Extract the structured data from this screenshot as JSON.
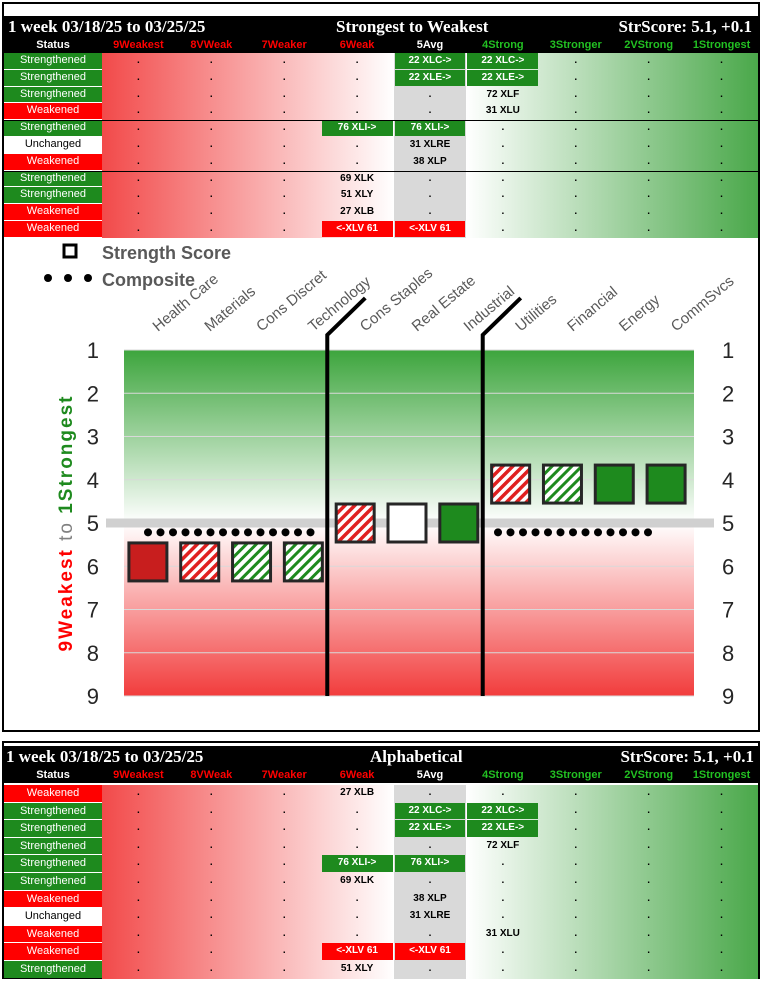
{
  "columns": [
    "Status",
    "9Weakest",
    "8VWeak",
    "7Weaker",
    "6Weak",
    "5Avg",
    "4Strong",
    "3Stronger",
    "2VStrong",
    "1Strongest"
  ],
  "top_table": {
    "period": "1 week 03/18/25 to 03/25/25",
    "title": "Strongest to Weakest",
    "score": "StrScore: 5.1, +0.1",
    "rows": [
      {
        "status": "Strengthened",
        "cells": {
          "5": {
            "text": "22 XLC->",
            "style": "green"
          },
          "6": {
            "text": "22 XLC->",
            "style": "green"
          }
        }
      },
      {
        "status": "Strengthened",
        "cells": {
          "5": {
            "text": "22 XLE->",
            "style": "green"
          },
          "6": {
            "text": "22 XLE->",
            "style": "green"
          }
        }
      },
      {
        "status": "Strengthened",
        "cells": {
          "6": {
            "text": "72 XLF",
            "style": ""
          }
        }
      },
      {
        "status": "Weakened",
        "cells": {
          "6": {
            "text": "31 XLU",
            "style": ""
          }
        }
      },
      {
        "status": "Strengthened",
        "cells": {
          "4": {
            "text": "76 XLI->",
            "style": "green"
          },
          "5": {
            "text": "76 XLI->",
            "style": "green"
          }
        }
      },
      {
        "status": "Unchanged",
        "cells": {
          "5": {
            "text": "31 XLRE",
            "style": ""
          }
        }
      },
      {
        "status": "Weakened",
        "cells": {
          "5": {
            "text": "38 XLP",
            "style": ""
          }
        }
      },
      {
        "status": "Strengthened",
        "cells": {
          "4": {
            "text": "69 XLK",
            "style": ""
          }
        }
      },
      {
        "status": "Strengthened",
        "cells": {
          "4": {
            "text": "51 XLY",
            "style": ""
          }
        }
      },
      {
        "status": "Weakened",
        "cells": {
          "4": {
            "text": "27 XLB",
            "style": ""
          }
        }
      },
      {
        "status": "Weakened",
        "cells": {
          "4": {
            "text": "<-XLV 61",
            "style": "red"
          },
          "5": {
            "text": "<-XLV 61",
            "style": "red"
          }
        }
      }
    ]
  },
  "bottom_table": {
    "period": "1 week 03/18/25 to 03/25/25",
    "title": "Alphabetical",
    "score": "StrScore: 5.1, +0.1",
    "rows": [
      {
        "status": "Weakened",
        "cells": {
          "4": {
            "text": "27 XLB",
            "style": ""
          }
        }
      },
      {
        "status": "Strengthened",
        "cells": {
          "5": {
            "text": "22 XLC->",
            "style": "green"
          },
          "6": {
            "text": "22 XLC->",
            "style": "green"
          }
        }
      },
      {
        "status": "Strengthened",
        "cells": {
          "5": {
            "text": "22 XLE->",
            "style": "green"
          },
          "6": {
            "text": "22 XLE->",
            "style": "green"
          }
        }
      },
      {
        "status": "Strengthened",
        "cells": {
          "6": {
            "text": "72 XLF",
            "style": ""
          }
        }
      },
      {
        "status": "Strengthened",
        "cells": {
          "4": {
            "text": "76 XLI->",
            "style": "green"
          },
          "5": {
            "text": "76 XLI->",
            "style": "green"
          }
        }
      },
      {
        "status": "Strengthened",
        "cells": {
          "4": {
            "text": "69 XLK",
            "style": ""
          }
        }
      },
      {
        "status": "Weakened",
        "cells": {
          "5": {
            "text": "38 XLP",
            "style": ""
          }
        }
      },
      {
        "status": "Unchanged",
        "cells": {
          "5": {
            "text": "31 XLRE",
            "style": ""
          }
        }
      },
      {
        "status": "Weakened",
        "cells": {
          "6": {
            "text": "31 XLU",
            "style": ""
          }
        }
      },
      {
        "status": "Weakened",
        "cells": {
          "4": {
            "text": "<-XLV 61",
            "style": "red"
          },
          "5": {
            "text": "<-XLV 61",
            "style": "red"
          }
        }
      },
      {
        "status": "Strengthened",
        "cells": {
          "4": {
            "text": "51 XLY",
            "style": ""
          }
        }
      }
    ]
  },
  "chart_data": {
    "type": "scatter",
    "legend": [
      {
        "name": "Strength Score",
        "marker": "hollow-square"
      },
      {
        "name": "Composite",
        "marker": "dots"
      }
    ],
    "legend_placement": "top-left",
    "categories": [
      "Health Care",
      "Materials",
      "Cons Discret",
      "Technology",
      "Cons Staples",
      "Real Estate",
      "Industrial",
      "Utilities",
      "Financial",
      "Energy",
      "CommSvcs"
    ],
    "strength_score": [
      5.9,
      5.9,
      5.9,
      5.9,
      5.0,
      5.0,
      5.0,
      4.1,
      4.1,
      4.1,
      4.1
    ],
    "marker_style": [
      "red-solid",
      "red-hatch",
      "green-hatch",
      "green-hatch",
      "red-hatch",
      "white",
      "green-solid",
      "red-hatch",
      "green-hatch",
      "green-solid",
      "green-solid"
    ],
    "composite": 5.1,
    "average_line": 5.0,
    "ylim": [
      1,
      9
    ],
    "yticks": [
      1,
      2,
      3,
      4,
      5,
      6,
      7,
      8,
      9
    ],
    "y_inverted": true,
    "ylabel_parts": [
      {
        "text": "9Weakest",
        "color": "#ff0000"
      },
      {
        "text": " to ",
        "color": "#808080"
      },
      {
        "text": "1Strongest",
        "color": "#1e8a1e"
      }
    ],
    "group_dividers_after": [
      3,
      6
    ],
    "colors": {
      "green": "#1e8a1e",
      "red": "#ff0000",
      "dark_red": "#c81e1e",
      "grid": "#d9d9d9"
    }
  }
}
